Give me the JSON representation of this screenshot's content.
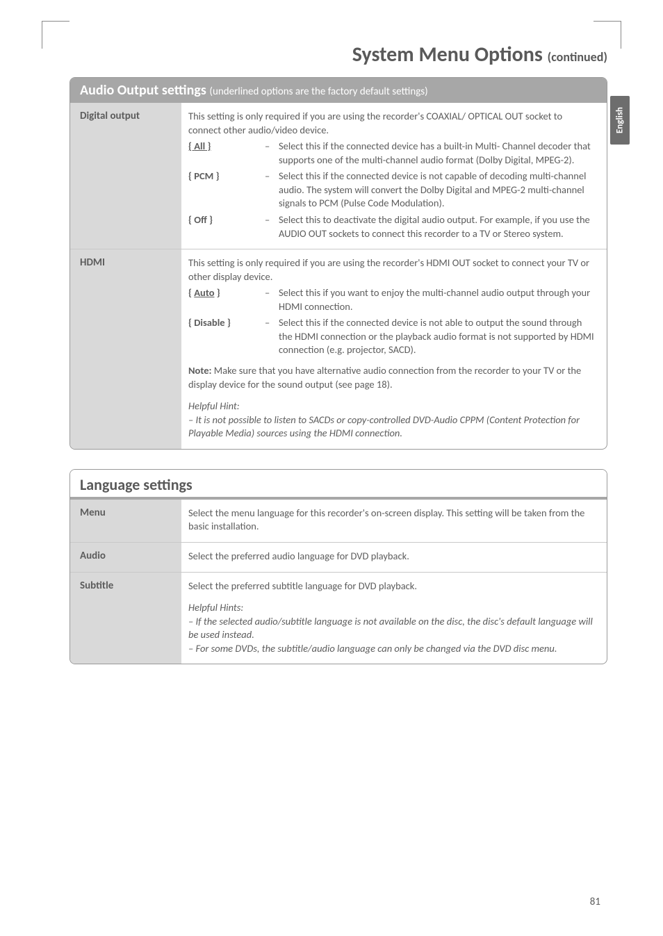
{
  "page": {
    "title_main": "System Menu Options",
    "title_cont": "(continued)",
    "side_tab": "English",
    "page_number": "81"
  },
  "audio_box": {
    "header_main": "Audio Output settings",
    "header_sub": "(underlined options are the factory default settings)",
    "digital": {
      "label": "Digital output",
      "intro": "This setting is only required if you are using the recorder's COAXIAL/ OPTICAL OUT socket to connect other audio/video device.",
      "opt_all_key": "{ All }",
      "opt_all_desc": "Select this if the connected device has a built-in Multi- Channel decoder that supports one of the multi-channel audio format (Dolby Digital, MPEG-2).",
      "opt_pcm_key": "{ PCM }",
      "opt_pcm_desc": "Select this if the connected device is not capable of decoding multi-channel audio. The system will convert the Dolby Digital and MPEG-2 multi-channel signals to PCM (Pulse Code Modulation).",
      "opt_off_key": "{ Off }",
      "opt_off_desc": "Select this to deactivate the digital audio output. For example, if you use the AUDIO OUT sockets to connect this recorder to a TV or Stereo system."
    },
    "hdmi": {
      "label": "HDMI",
      "intro": "This setting is only required if you are using the recorder's HDMI OUT socket to connect your TV or other display device.",
      "opt_auto_key": "{ Auto }",
      "opt_auto_desc": "Select this if you want to enjoy the multi-channel audio output through your HDMI connection.",
      "opt_disable_key": "{ Disable }",
      "opt_disable_desc": "Select this if the connected device is not able to output the sound through the HDMI connection or the playback audio format is not supported by HDMI connection (e.g. projector, SACD).",
      "note_label": "Note:",
      "note_text": " Make sure that you have alternative audio connection from the recorder to your TV or the display device for the sound output (see page 18).",
      "hint_label": "Helpful Hint:",
      "hint_text": "– It is not possible to listen to SACDs or copy-controlled DVD-Audio CPPM (Content Protection for Playable Media) sources using the HDMI connection."
    }
  },
  "lang_box": {
    "header": "Language settings",
    "menu": {
      "label": "Menu",
      "text": "Select the menu language for this recorder's on-screen display.  This setting will be taken from the basic installation."
    },
    "audio": {
      "label": "Audio",
      "text": "Select the preferred audio language for DVD playback."
    },
    "subtitle": {
      "label": "Subtitle",
      "text": "Select the preferred subtitle language for DVD playback.",
      "hint_label": "Helpful Hints:",
      "hint1": "– If the selected audio/subtitle language is not available on the disc, the disc's default language will be used instead.",
      "hint2": "– For some DVDs, the subtitle/audio language can only be changed via the DVD disc menu."
    }
  }
}
